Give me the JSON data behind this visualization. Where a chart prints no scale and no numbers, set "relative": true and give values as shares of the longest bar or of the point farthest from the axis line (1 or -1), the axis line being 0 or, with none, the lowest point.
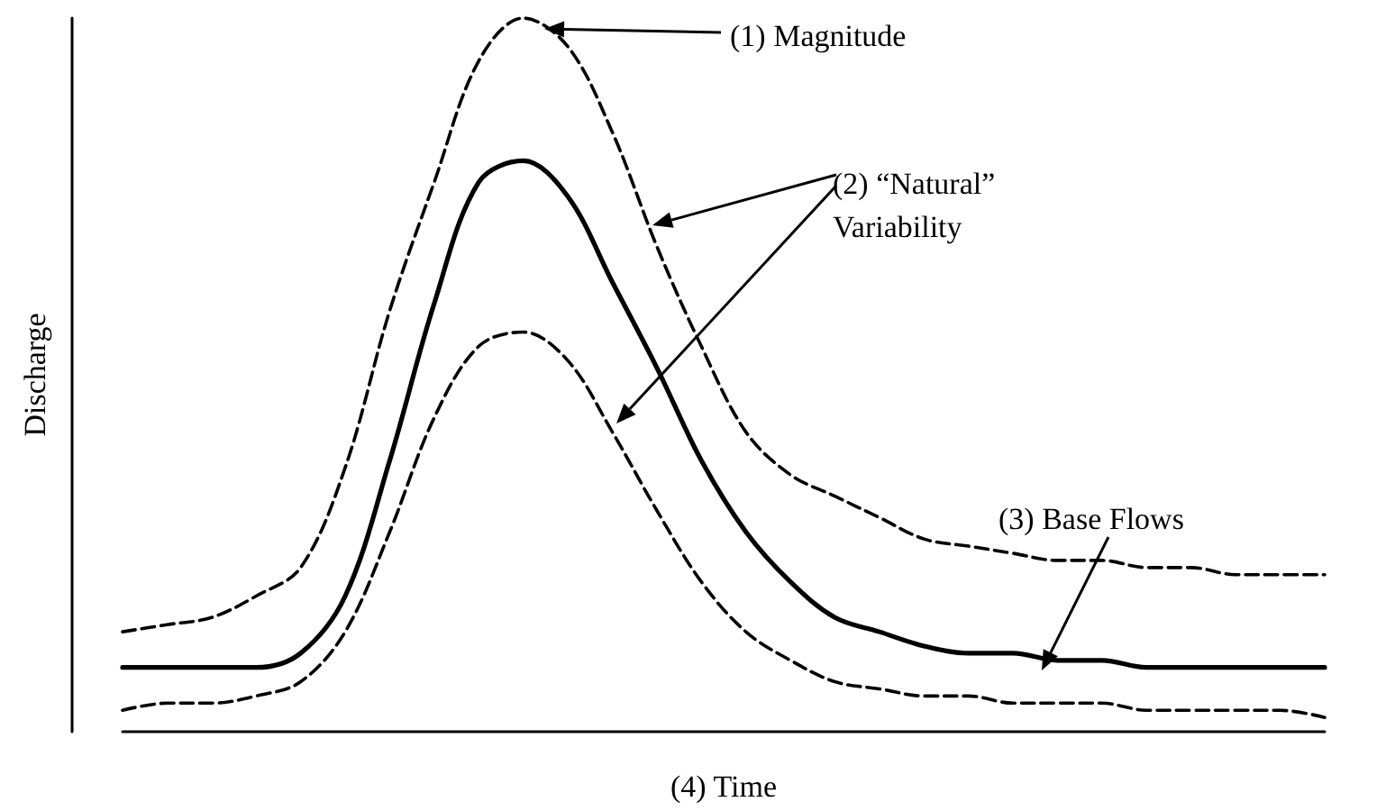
{
  "chart_data": {
    "type": "line",
    "xlabel": "(4) Time",
    "ylabel": "Discharge",
    "relative": true,
    "marker": "none",
    "grid": false,
    "categories": [
      null,
      null,
      null,
      null,
      null,
      null,
      null,
      null,
      null,
      null,
      null,
      null,
      null,
      null,
      null,
      null,
      null,
      null,
      null,
      null,
      null,
      null,
      null,
      null,
      null,
      null,
      null,
      null
    ],
    "series": [
      {
        "color": "#000000",
        "line_style": "dashed",
        "values": [
          0.14,
          0.15,
          0.16,
          0.19,
          0.23,
          0.37,
          0.59,
          0.77,
          0.94,
          1.0,
          0.96,
          0.84,
          0.68,
          0.54,
          0.42,
          0.36,
          0.33,
          0.3,
          0.27,
          0.26,
          0.25,
          0.24,
          0.24,
          0.23,
          0.23,
          0.22,
          0.22,
          0.22
        ]
      },
      {
        "color": "#000000",
        "line_style": "solid",
        "values": [
          0.09,
          0.09,
          0.09,
          0.09,
          0.11,
          0.19,
          0.38,
          0.6,
          0.77,
          0.8,
          0.75,
          0.63,
          0.51,
          0.38,
          0.28,
          0.21,
          0.16,
          0.14,
          0.12,
          0.11,
          0.11,
          0.1,
          0.1,
          0.09,
          0.09,
          0.09,
          0.09,
          0.09
        ]
      },
      {
        "color": "#000000",
        "line_style": "dashed",
        "values": [
          0.03,
          0.04,
          0.04,
          0.05,
          0.07,
          0.14,
          0.28,
          0.44,
          0.54,
          0.56,
          0.52,
          0.42,
          0.31,
          0.21,
          0.14,
          0.1,
          0.07,
          0.06,
          0.05,
          0.05,
          0.04,
          0.04,
          0.04,
          0.03,
          0.03,
          0.03,
          0.03,
          0.02
        ]
      }
    ],
    "annotations": [
      "(1) Magnitude",
      "(2) “Natural” Variability",
      "(3) Base Flows"
    ]
  }
}
